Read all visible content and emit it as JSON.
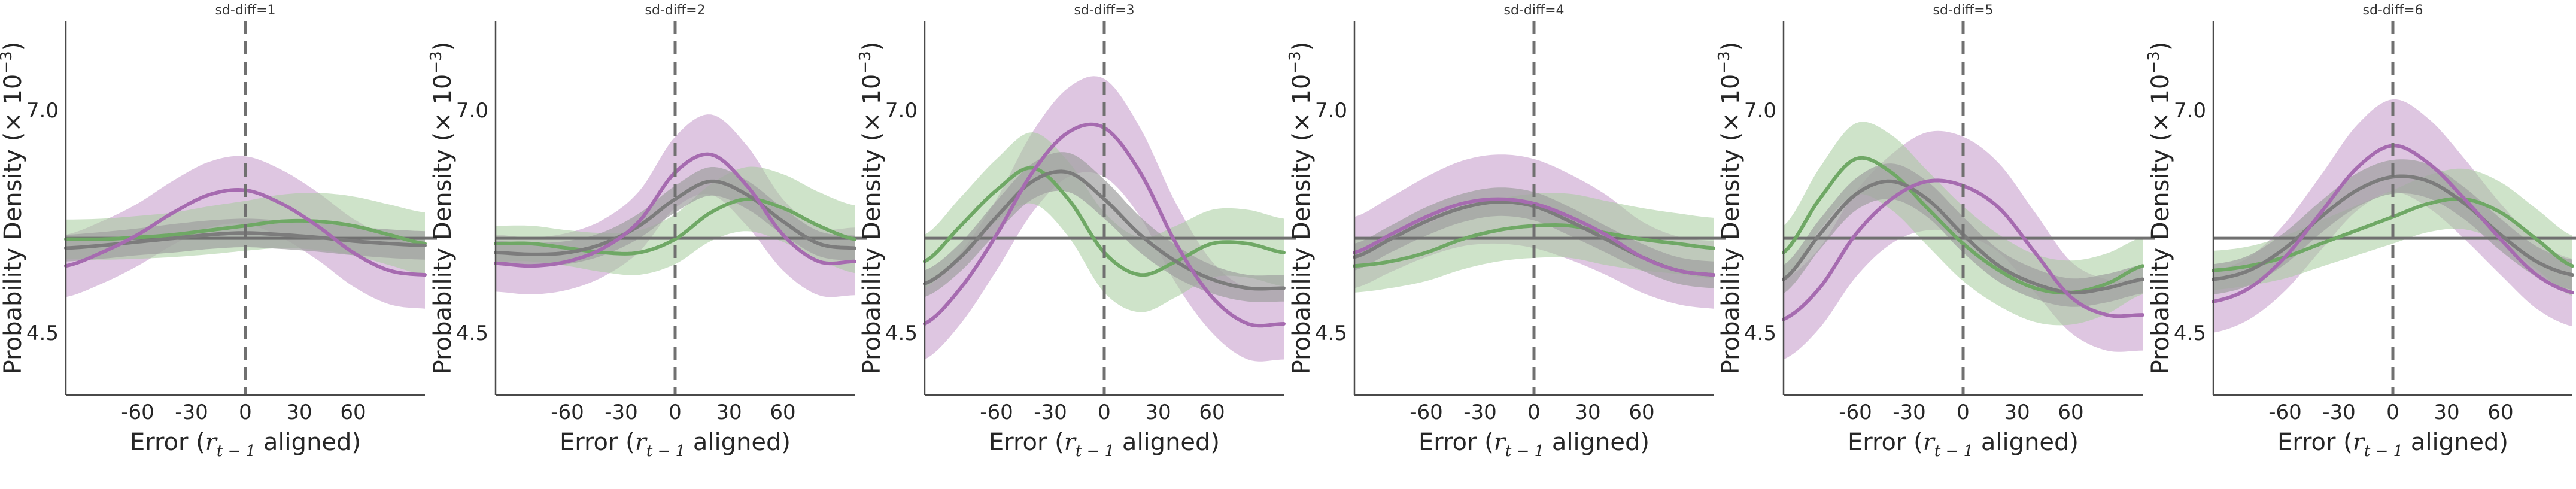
{
  "chart_data": {
    "type": "line",
    "colors": {
      "purple": "#a66bb0",
      "purple_band": "#c397c9",
      "gray": "#7c7c7c",
      "gray_band": "#9f9f9f",
      "green": "#6fa865",
      "green_band": "#a6cc9c",
      "dashed": "#707070",
      "baseline": "#707070",
      "axis": "#4a4a4a"
    },
    "xlim": [
      -100,
      100
    ],
    "ylim": [
      3.8,
      8.0
    ],
    "xticks": [
      -60,
      -30,
      0,
      30,
      60
    ],
    "xtick_labels": [
      "-60",
      "-30",
      "0",
      "30",
      "60"
    ],
    "yticks": [
      4.5,
      7.0
    ],
    "ytick_labels": [
      "4.5",
      "7.0"
    ],
    "xlabel_main": "Error (",
    "xlabel_math_var": "r",
    "xlabel_math_sub": "t − 1",
    "xlabel_tail": " aligned)",
    "ylabel_main": "Probability Density (× 10",
    "ylabel_exp": "−3",
    "ylabel_tail": ")",
    "baseline_y": 5.56,
    "vline_x": 0,
    "x": [
      -100,
      -80,
      -60,
      -40,
      -20,
      0,
      20,
      40,
      60,
      80,
      100
    ],
    "panels": [
      {
        "title": "sd-diff=1",
        "series": [
          {
            "name": "purple",
            "values": [
              5.25,
              5.4,
              5.6,
              5.85,
              6.05,
              6.1,
              5.95,
              5.7,
              5.4,
              5.2,
              5.15
            ],
            "band": [
              0.35,
              0.35,
              0.35,
              0.36,
              0.37,
              0.38,
              0.38,
              0.38,
              0.38,
              0.38,
              0.38
            ]
          },
          {
            "name": "green",
            "values": [
              5.55,
              5.55,
              5.57,
              5.6,
              5.65,
              5.7,
              5.75,
              5.75,
              5.7,
              5.6,
              5.5
            ],
            "band": [
              0.22,
              0.23,
              0.24,
              0.25,
              0.27,
              0.28,
              0.3,
              0.32,
              0.33,
              0.34,
              0.35
            ]
          },
          {
            "name": "gray",
            "values": [
              5.45,
              5.48,
              5.52,
              5.56,
              5.6,
              5.62,
              5.6,
              5.57,
              5.53,
              5.5,
              5.48
            ],
            "band": [
              0.15,
              0.15,
              0.15,
              0.16,
              0.16,
              0.16,
              0.16,
              0.16,
              0.16,
              0.16,
              0.16
            ]
          }
        ]
      },
      {
        "title": "sd-diff=2",
        "series": [
          {
            "name": "purple",
            "values": [
              5.28,
              5.25,
              5.3,
              5.45,
              5.75,
              6.3,
              6.5,
              6.15,
              5.6,
              5.3,
              5.3
            ],
            "band": [
              0.32,
              0.32,
              0.32,
              0.32,
              0.34,
              0.4,
              0.45,
              0.45,
              0.4,
              0.38,
              0.38
            ]
          },
          {
            "name": "green",
            "values": [
              5.5,
              5.5,
              5.45,
              5.4,
              5.4,
              5.55,
              5.85,
              6.0,
              5.9,
              5.7,
              5.55
            ],
            "band": [
              0.2,
              0.2,
              0.2,
              0.22,
              0.25,
              0.28,
              0.32,
              0.36,
              0.38,
              0.38,
              0.38
            ]
          },
          {
            "name": "gray",
            "values": [
              5.4,
              5.38,
              5.4,
              5.5,
              5.7,
              6.0,
              6.2,
              6.05,
              5.75,
              5.5,
              5.45
            ],
            "band": [
              0.13,
              0.13,
              0.13,
              0.13,
              0.14,
              0.15,
              0.16,
              0.16,
              0.15,
              0.14,
              0.14
            ]
          }
        ]
      },
      {
        "title": "sd-diff=3",
        "series": [
          {
            "name": "purple",
            "values": [
              4.6,
              5.0,
              5.6,
              6.3,
              6.75,
              6.8,
              6.3,
              5.5,
              4.9,
              4.6,
              4.6
            ],
            "band": [
              0.4,
              0.4,
              0.4,
              0.45,
              0.5,
              0.55,
              0.5,
              0.45,
              0.4,
              0.4,
              0.4
            ]
          },
          {
            "name": "green",
            "values": [
              5.3,
              5.7,
              6.1,
              6.35,
              6.0,
              5.4,
              5.15,
              5.3,
              5.5,
              5.5,
              5.4
            ],
            "band": [
              0.3,
              0.32,
              0.35,
              0.4,
              0.42,
              0.45,
              0.42,
              0.4,
              0.38,
              0.38,
              0.38
            ]
          },
          {
            "name": "gray",
            "values": [
              5.05,
              5.35,
              5.8,
              6.2,
              6.3,
              6.0,
              5.6,
              5.3,
              5.1,
              5.0,
              5.0
            ],
            "band": [
              0.15,
              0.16,
              0.18,
              0.2,
              0.22,
              0.22,
              0.2,
              0.18,
              0.16,
              0.15,
              0.15
            ]
          }
        ]
      },
      {
        "title": "sd-diff=4",
        "series": [
          {
            "name": "purple",
            "values": [
              5.4,
              5.6,
              5.8,
              5.95,
              6.0,
              5.95,
              5.8,
              5.6,
              5.35,
              5.2,
              5.15
            ],
            "band": [
              0.4,
              0.42,
              0.45,
              0.48,
              0.5,
              0.5,
              0.48,
              0.45,
              0.4,
              0.38,
              0.38
            ]
          },
          {
            "name": "green",
            "values": [
              5.25,
              5.3,
              5.4,
              5.55,
              5.65,
              5.7,
              5.7,
              5.62,
              5.55,
              5.5,
              5.45
            ],
            "band": [
              0.3,
              0.3,
              0.32,
              0.34,
              0.35,
              0.36,
              0.36,
              0.36,
              0.35,
              0.34,
              0.34
            ]
          },
          {
            "name": "gray",
            "values": [
              5.35,
              5.55,
              5.75,
              5.9,
              5.97,
              5.92,
              5.75,
              5.55,
              5.35,
              5.2,
              5.15
            ],
            "band": [
              0.15,
              0.15,
              0.16,
              0.16,
              0.16,
              0.16,
              0.16,
              0.15,
              0.15,
              0.15,
              0.15
            ]
          }
        ]
      },
      {
        "title": "sd-diff=5",
        "series": [
          {
            "name": "purple",
            "values": [
              4.65,
              5.0,
              5.6,
              6.0,
              6.2,
              6.15,
              5.9,
              5.4,
              4.9,
              4.7,
              4.7
            ],
            "band": [
              0.45,
              0.45,
              0.48,
              0.5,
              0.55,
              0.55,
              0.5,
              0.45,
              0.4,
              0.4,
              0.4
            ]
          },
          {
            "name": "green",
            "values": [
              5.4,
              6.0,
              6.45,
              6.3,
              5.9,
              5.5,
              5.2,
              5.0,
              4.95,
              5.05,
              5.25
            ],
            "band": [
              0.3,
              0.35,
              0.4,
              0.42,
              0.42,
              0.42,
              0.4,
              0.38,
              0.36,
              0.34,
              0.32
            ]
          },
          {
            "name": "gray",
            "values": [
              5.1,
              5.6,
              6.05,
              6.2,
              6.0,
              5.6,
              5.25,
              5.05,
              4.95,
              5.0,
              5.1
            ],
            "band": [
              0.16,
              0.17,
              0.18,
              0.2,
              0.2,
              0.2,
              0.18,
              0.17,
              0.16,
              0.16,
              0.16
            ]
          }
        ]
      },
      {
        "title": "sd-diff=6",
        "series": [
          {
            "name": "purple",
            "values": [
              4.85,
              5.0,
              5.35,
              5.85,
              6.35,
              6.6,
              6.4,
              6.0,
              5.55,
              5.15,
              4.95
            ],
            "band": [
              0.35,
              0.35,
              0.38,
              0.42,
              0.48,
              0.52,
              0.5,
              0.45,
              0.4,
              0.38,
              0.38
            ]
          },
          {
            "name": "green",
            "values": [
              5.2,
              5.25,
              5.35,
              5.5,
              5.65,
              5.8,
              5.95,
              6.0,
              5.85,
              5.55,
              5.25
            ],
            "band": [
              0.22,
              0.22,
              0.24,
              0.26,
              0.28,
              0.3,
              0.32,
              0.34,
              0.34,
              0.34,
              0.34
            ]
          },
          {
            "name": "gray",
            "values": [
              5.1,
              5.2,
              5.45,
              5.8,
              6.1,
              6.25,
              6.2,
              5.95,
              5.6,
              5.3,
              5.15
            ],
            "band": [
              0.17,
              0.17,
              0.18,
              0.18,
              0.19,
              0.19,
              0.19,
              0.18,
              0.18,
              0.17,
              0.17
            ]
          }
        ]
      }
    ]
  }
}
